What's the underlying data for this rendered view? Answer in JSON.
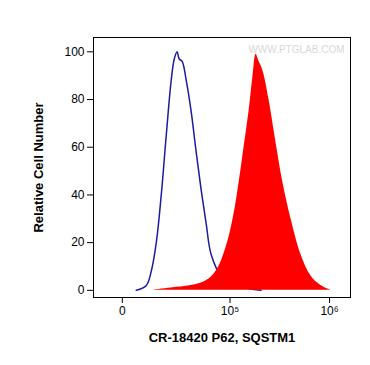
{
  "chart_data": {
    "type": "line",
    "xlabel": "CR-18420 P62, SQSTM1",
    "ylabel": "Relative Cell Number",
    "annotations": [
      "WWW.PTGLAB.COM"
    ],
    "log": "x",
    "xlim": [
      -9000,
      1600000
    ],
    "xticks": [
      0,
      {
        "value": 100000,
        "label": "10⁵"
      },
      {
        "value": 1000000,
        "label": "10⁶"
      }
    ],
    "ylim": [
      -3,
      106
    ],
    "yticks": [
      0,
      20,
      40,
      60,
      80,
      100
    ],
    "grid": false,
    "series": [
      {
        "type": "line",
        "color": "#1c1c9c",
        "x": [
          3650,
          7040,
          9050,
          11300,
          13800,
          16600,
          19700,
          21800,
          23900,
          25500,
          27900,
          31500,
          36300,
          41800,
          47900,
          54700,
          62300,
          80300,
          102700,
          147000,
          209600
        ],
        "values": [
          0,
          2,
          8,
          20,
          40,
          65,
          88,
          97,
          100,
          97,
          96,
          88,
          75,
          58,
          42,
          28,
          15,
          6,
          3,
          1,
          0
        ]
      },
      {
        "type": "area",
        "color": "#ff0000",
        "x": [
          9050,
          19700,
          36300,
          54700,
          70800,
          90800,
          107900,
          124600,
          140400,
          158100,
          173800,
          186500,
          199900,
          219500,
          252300,
          296400,
          348000,
          418000,
          524000,
          657000,
          823000,
          1030000
        ],
        "values": [
          0,
          1,
          2,
          4,
          8,
          18,
          30,
          45,
          60,
          75,
          90,
          99,
          96,
          92,
          80,
          62,
          45,
          30,
          15,
          6,
          2,
          0
        ]
      }
    ]
  }
}
